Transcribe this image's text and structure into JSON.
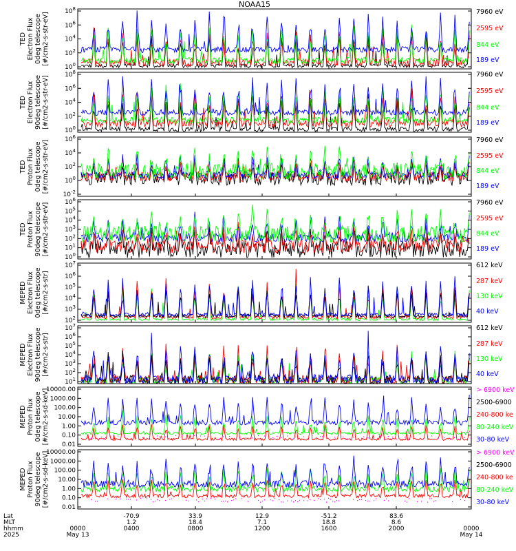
{
  "title": "NOAA15",
  "colors": {
    "blue": "#0000ff",
    "red": "#ff0000",
    "green": "#00ff00",
    "black": "#000000",
    "magenta": "#ff00ff"
  },
  "chart_data": [
    {
      "type": "line",
      "ylabel": [
        "TED",
        "Electron Flux",
        "0deg telescope",
        "[#/cm2-s-str-eV]"
      ],
      "yscale": "log",
      "yticks": [
        "10^0",
        "10^2",
        "10^4",
        "10^6",
        "10^8"
      ],
      "legend": [
        {
          "name": "7960 eV",
          "color": "#000000"
        },
        {
          "name": "2595 eV",
          "color": "#ff0000"
        },
        {
          "name": "844 eV",
          "color": "#00ff00"
        },
        {
          "name": "189 eV",
          "color": "#0000ff"
        }
      ]
    },
    {
      "type": "line",
      "ylabel": [
        "TED",
        "Electron Flux",
        "90deg telescope",
        "[#/cm2-s-str-eV]"
      ],
      "yscale": "log",
      "yticks": [
        "10^0",
        "10^2",
        "10^4",
        "10^6",
        "10^8"
      ],
      "legend": [
        {
          "name": "7960 eV",
          "color": "#000000"
        },
        {
          "name": "2595 eV",
          "color": "#ff0000"
        },
        {
          "name": "844 eV",
          "color": "#00ff00"
        },
        {
          "name": "189 eV",
          "color": "#0000ff"
        }
      ]
    },
    {
      "type": "line",
      "ylabel": [
        "TED",
        "Proton Flux",
        "0deg telescope",
        "[#/cm2-s-str-eV]"
      ],
      "yscale": "log",
      "yticks": [
        "10^-2",
        "10^0",
        "10^2",
        "10^4",
        "10^6"
      ],
      "legend": [
        {
          "name": "7960 eV",
          "color": "#000000"
        },
        {
          "name": "2595 eV",
          "color": "#ff0000"
        },
        {
          "name": "844 eV",
          "color": "#00ff00"
        },
        {
          "name": "189 eV",
          "color": "#0000ff"
        }
      ]
    },
    {
      "type": "line",
      "ylabel": [
        "TED",
        "Proton Flux",
        "90deg telescope",
        "[#/cm2-s-str-eV]"
      ],
      "yscale": "log",
      "yticks": [
        "10^0",
        "10^1",
        "10^2",
        "10^3",
        "10^4",
        "10^5",
        "10^6"
      ],
      "legend": [
        {
          "name": "7960 eV",
          "color": "#000000"
        },
        {
          "name": "2595 eV",
          "color": "#ff0000"
        },
        {
          "name": "844 eV",
          "color": "#00ff00"
        },
        {
          "name": "189 eV",
          "color": "#0000ff"
        }
      ]
    },
    {
      "type": "line",
      "ylabel": [
        "MEPED",
        "Electron Flux",
        "0deg telescope",
        "[#/cm2-s-str]"
      ],
      "yscale": "log",
      "yticks": [
        "10^2",
        "10^3",
        "10^4",
        "10^5",
        "10^6",
        "10^7"
      ],
      "legend": [
        {
          "name": "612 keV",
          "color": "#000000"
        },
        {
          "name": "287 keV",
          "color": "#ff0000"
        },
        {
          "name": "130 keV",
          "color": "#00ff00"
        },
        {
          "name": "40 keV",
          "color": "#0000ff"
        }
      ]
    },
    {
      "type": "line",
      "ylabel": [
        "MEPED",
        "Electron Flux",
        "90deg telescope",
        "[#/cm2-s-str]"
      ],
      "yscale": "log",
      "yticks": [
        "10^1",
        "10^2",
        "10^3",
        "10^4",
        "10^5",
        "10^6",
        "10^7"
      ],
      "legend": [
        {
          "name": "612 keV",
          "color": "#000000"
        },
        {
          "name": "287 keV",
          "color": "#ff0000"
        },
        {
          "name": "130 keV",
          "color": "#00ff00"
        },
        {
          "name": "40 keV",
          "color": "#0000ff"
        }
      ]
    },
    {
      "type": "line",
      "ylabel": [
        "MEPED",
        "Proton Flux",
        "0deg telescope",
        "[#/cm2-s-sd-keV]"
      ],
      "yscale": "log",
      "yticks": [
        "0.01",
        "0.10",
        "1.00",
        "10.00",
        "100.00",
        "1000.00",
        "10000.00"
      ],
      "legend": [
        {
          "name": "> 6900 keV",
          "color": "#ff00ff"
        },
        {
          "name": "2500-6900",
          "color": "#000000"
        },
        {
          "name": "240-800 ke",
          "color": "#ff0000"
        },
        {
          "name": "80-240 keV",
          "color": "#00ff00"
        },
        {
          "name": "30-80 keV",
          "color": "#0000ff"
        }
      ]
    },
    {
      "type": "line",
      "ylabel": [
        "MEPED",
        "Proton Flux",
        "90deg telescope",
        "[#/cm2-s-sd-keV]"
      ],
      "yscale": "log",
      "yticks": [
        "0.01",
        "0.10",
        "1.00",
        "10.00",
        "100.00",
        "1000.00",
        "10000.00"
      ],
      "legend": [
        {
          "name": "> 6900 keV",
          "color": "#ff00ff"
        },
        {
          "name": "2500-6900",
          "color": "#000000"
        },
        {
          "name": "240-800 ke",
          "color": "#ff0000"
        },
        {
          "name": "80-240 keV",
          "color": "#00ff00"
        },
        {
          "name": "30-80 keV",
          "color": "#0000ff"
        }
      ]
    }
  ],
  "xaxis": {
    "row_labels": [
      "Lat",
      "MLT",
      "hhmm",
      "2025"
    ],
    "ticks": [
      {
        "lat": "",
        "mlt": "",
        "hhmm": "0000",
        "date": "May 13"
      },
      {
        "lat": "-70.9",
        "mlt": "1.2",
        "hhmm": "0400",
        "date": ""
      },
      {
        "lat": "33.9",
        "mlt": "18.4",
        "hhmm": "0800",
        "date": ""
      },
      {
        "lat": "12.9",
        "mlt": "7.1",
        "hhmm": "1200",
        "date": ""
      },
      {
        "lat": "-51.2",
        "mlt": "18.8",
        "hhmm": "1600",
        "date": ""
      },
      {
        "lat": "83.6",
        "mlt": "8.6",
        "hhmm": "2000",
        "date": ""
      },
      {
        "lat": "",
        "mlt": "",
        "hhmm": "0000",
        "date": "May 14"
      }
    ]
  }
}
